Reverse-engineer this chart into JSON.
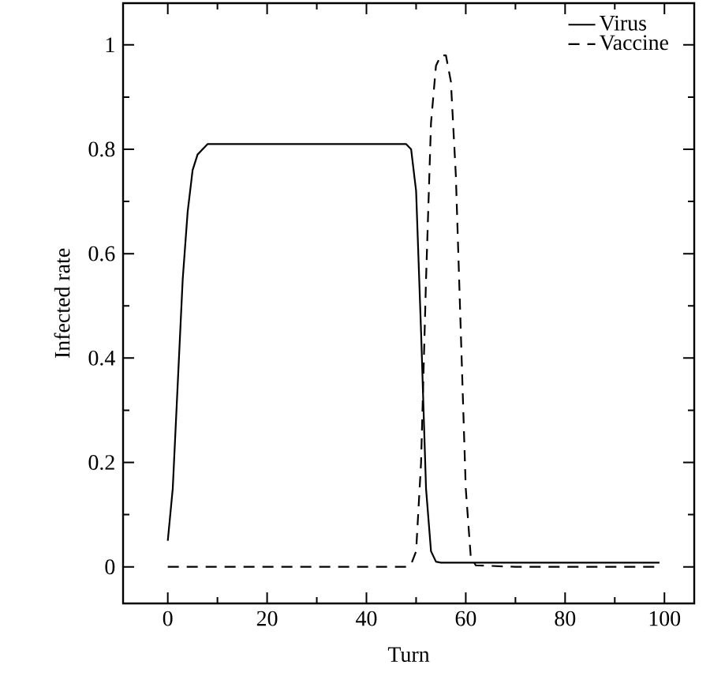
{
  "chart_data": {
    "type": "line",
    "xlabel": "Turn",
    "ylabel": "Infected rate",
    "xlim": [
      -9,
      106
    ],
    "ylim": [
      -0.07,
      1.08
    ],
    "xticks": [
      0,
      20,
      40,
      60,
      80,
      100
    ],
    "yticks": [
      0,
      0.2,
      0.4,
      0.6,
      0.8,
      1
    ],
    "legend": "top right",
    "grid": false,
    "series": [
      {
        "name": "Virus",
        "color": "#000000",
        "line_style": "solid",
        "x": [
          0,
          1,
          2,
          3,
          4,
          5,
          6,
          7,
          8,
          10,
          20,
          30,
          40,
          48,
          49,
          50,
          51,
          52,
          53,
          54,
          55,
          60,
          70,
          80,
          90,
          99
        ],
        "values": [
          0.05,
          0.15,
          0.35,
          0.55,
          0.68,
          0.76,
          0.79,
          0.8,
          0.81,
          0.81,
          0.81,
          0.81,
          0.81,
          0.81,
          0.8,
          0.72,
          0.45,
          0.15,
          0.03,
          0.01,
          0.008,
          0.008,
          0.008,
          0.008,
          0.008,
          0.008
        ]
      },
      {
        "name": "Vaccine",
        "color": "#000000",
        "line_style": "dashed",
        "x": [
          0,
          10,
          20,
          30,
          40,
          48,
          49,
          50,
          51,
          52,
          53,
          54,
          55,
          56,
          57,
          58,
          59,
          60,
          61,
          62,
          70,
          80,
          90,
          99
        ],
        "values": [
          0,
          0,
          0,
          0,
          0,
          0,
          0.005,
          0.03,
          0.2,
          0.55,
          0.85,
          0.96,
          0.98,
          0.98,
          0.93,
          0.75,
          0.45,
          0.15,
          0.02,
          0.003,
          0,
          0,
          0,
          0
        ]
      }
    ]
  }
}
